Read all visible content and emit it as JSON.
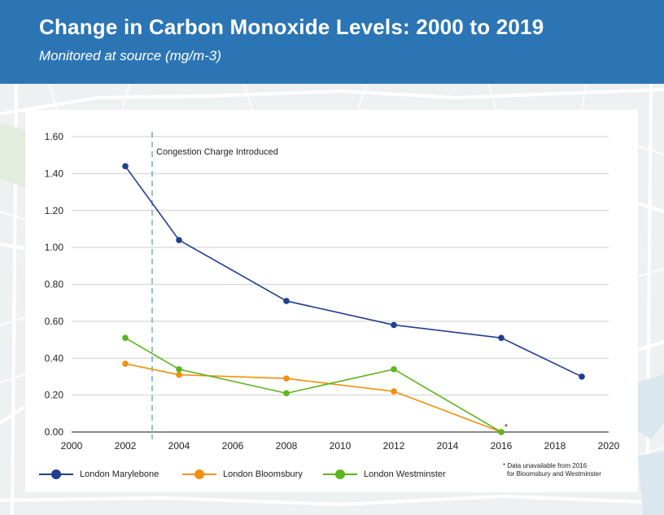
{
  "header": {
    "title": "Change in Carbon Monoxide Levels: 2000 to 2019",
    "subtitle": "Monitored at source (mg/m-3)"
  },
  "colors": {
    "header_bg": "#2c75b5",
    "marylebone": "#1f3f8f",
    "bloomsbury": "#f0900e",
    "westminster": "#5db41d",
    "annotation_line": "#2f7fa6",
    "grid": "#cfcfcf"
  },
  "legend": [
    {
      "label": "London Marylebone",
      "color": "#1f3f8f"
    },
    {
      "label": "London Bloomsbury",
      "color": "#f0900e"
    },
    {
      "label": "London Westminster",
      "color": "#5db41d"
    }
  ],
  "footnote": {
    "line1": "* Data unavailable from 2016",
    "line2": "for Bloomsbury and Westminster"
  },
  "chart_data": {
    "type": "line",
    "title": "Change in Carbon Monoxide Levels: 2000 to 2019",
    "subtitle": "Monitored at source (mg/m-3)",
    "xlabel": "",
    "ylabel": "",
    "xlim": [
      2000,
      2020
    ],
    "ylim": [
      0,
      1.6
    ],
    "xticks": [
      2000,
      2002,
      2004,
      2006,
      2008,
      2010,
      2012,
      2014,
      2016,
      2018,
      2020
    ],
    "xtick_labels": [
      "2000",
      "2002",
      "2004",
      "2006",
      "2008",
      "2010",
      "2012",
      "2014",
      "2016",
      "2018",
      "2020"
    ],
    "yticks": [
      0,
      0.2,
      0.4,
      0.6,
      0.8,
      1.0,
      1.2,
      1.4,
      1.6
    ],
    "ytick_labels": [
      "0.00",
      "0.20",
      "0.40",
      "0.60",
      "0.80",
      "1.00",
      "1.20",
      "1.40",
      "1.60"
    ],
    "grid": true,
    "legend_position": "bottom",
    "series": [
      {
        "name": "London Marylebone",
        "color": "#1f3f8f",
        "x": [
          2002,
          2004,
          2008,
          2012,
          2016,
          2019
        ],
        "y": [
          1.44,
          1.04,
          0.71,
          0.58,
          0.51,
          0.3
        ]
      },
      {
        "name": "London Bloomsbury",
        "color": "#f0900e",
        "x": [
          2002,
          2004,
          2008,
          2012,
          2016
        ],
        "y": [
          0.37,
          0.31,
          0.29,
          0.22,
          0.0
        ]
      },
      {
        "name": "London Westminster",
        "color": "#5db41d",
        "x": [
          2002,
          2004,
          2008,
          2012,
          2016
        ],
        "y": [
          0.51,
          0.34,
          0.21,
          0.34,
          0.0
        ]
      }
    ],
    "annotations": [
      {
        "type": "vline",
        "x": 2003,
        "label": "Congestion Charge Introduced"
      },
      {
        "type": "marker",
        "x": 2016,
        "y": 0.0,
        "label": "*"
      }
    ]
  }
}
